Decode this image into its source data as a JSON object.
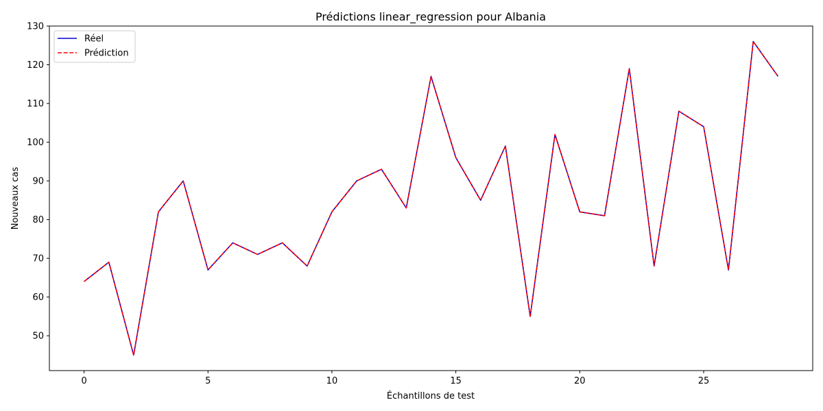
{
  "chart_data": {
    "type": "line",
    "title": "Prédictions linear_regression pour Albania",
    "xlabel": "Échantillons de test",
    "ylabel": "Nouveaux cas",
    "xlim": [
      -1.4,
      29.4
    ],
    "ylim": [
      41,
      130
    ],
    "x_ticks": [
      0,
      5,
      10,
      15,
      20,
      25
    ],
    "y_ticks": [
      50,
      60,
      70,
      80,
      90,
      100,
      110,
      120,
      130
    ],
    "x_tick_labels": [
      "0",
      "5",
      "10",
      "15",
      "20",
      "25"
    ],
    "y_tick_labels": [
      "50",
      "60",
      "70",
      "80",
      "90",
      "100",
      "110",
      "120",
      "130"
    ],
    "grid": false,
    "legend_position": "top-left",
    "x": [
      0,
      1,
      2,
      3,
      4,
      5,
      6,
      7,
      8,
      9,
      10,
      11,
      12,
      13,
      14,
      15,
      16,
      17,
      18,
      19,
      20,
      21,
      22,
      23,
      24,
      25,
      26,
      27,
      28
    ],
    "series": [
      {
        "name": "Réel",
        "color": "#0000cc",
        "style": "solid",
        "values": [
          64,
          69,
          45,
          82,
          90,
          67,
          74,
          71,
          74,
          68,
          82,
          90,
          93,
          83,
          117,
          96,
          85,
          99,
          55,
          102,
          82,
          81,
          119,
          68,
          108,
          104,
          67,
          126,
          117
        ]
      },
      {
        "name": "Prédiction",
        "color": "#ff0000",
        "style": "dashed",
        "values": [
          64,
          69,
          45,
          82,
          90,
          67,
          74,
          71,
          74,
          68,
          82,
          90,
          93,
          83,
          117,
          96,
          85,
          99,
          55,
          102,
          82,
          81,
          119,
          68,
          108,
          104,
          67,
          126,
          117
        ]
      }
    ]
  }
}
